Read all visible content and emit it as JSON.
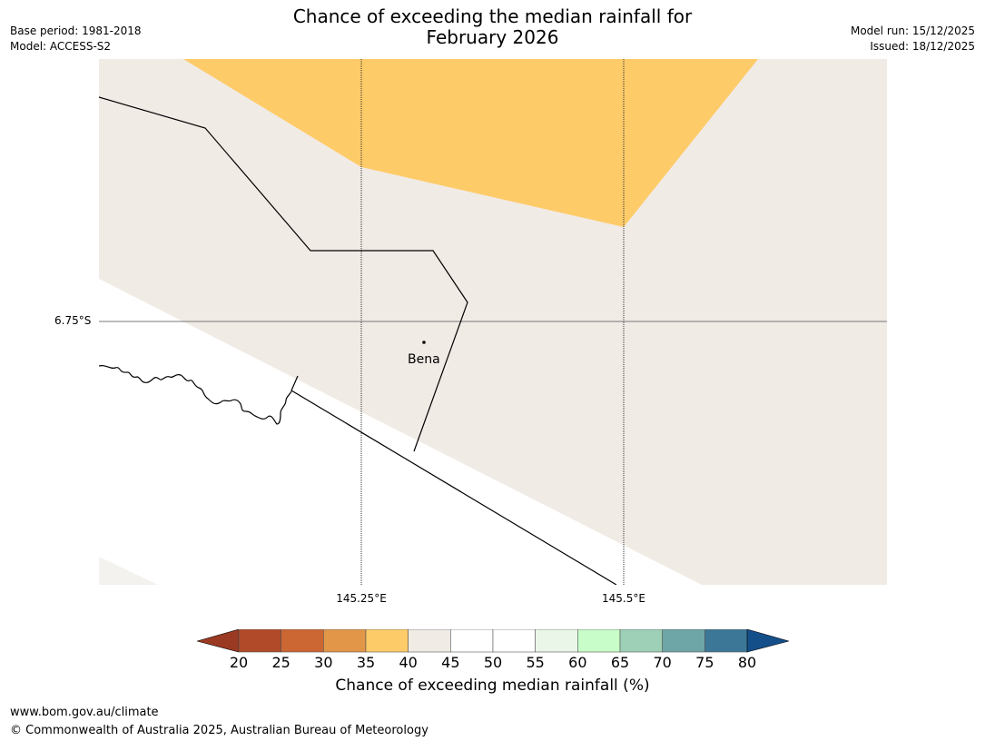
{
  "title": {
    "line1": "Chance of exceeding the median rainfall for",
    "line2": "February 2026"
  },
  "meta": {
    "base_period": "Base period: 1981-2018",
    "model": "Model: ACCESS-S2",
    "model_run": "Model run: 15/12/2025",
    "issued": "Issued: 18/12/2025"
  },
  "map": {
    "lat_label": "6.75°S",
    "lon_labels": [
      "145.25°E",
      "145.5°E"
    ],
    "town": "Bena",
    "colors": {
      "category_35_40": "#fecb69",
      "category_40_45": "#f1ebe5",
      "land_white": "#ffffff",
      "boundary": "#000000"
    }
  },
  "legend": {
    "title": "Chance of exceeding median rainfall (%)",
    "ticks": [
      "20",
      "25",
      "30",
      "35",
      "40",
      "45",
      "50",
      "55",
      "60",
      "65",
      "70",
      "75",
      "80"
    ],
    "under_color": "#9b3a22",
    "over_color": "#154f8a",
    "colors": [
      "#b04a28",
      "#cc6633",
      "#e29648",
      "#fecb69",
      "#f1ebe5",
      "#ffffff",
      "#ffffff",
      "#e9f6e8",
      "#c8fcc8",
      "#9dd0b7",
      "#6ea5a6",
      "#3d7797"
    ]
  },
  "footer": {
    "url": "www.bom.gov.au/climate",
    "copyright": "© Commonwealth of Australia 2025, Australian Bureau of Meteorology"
  }
}
